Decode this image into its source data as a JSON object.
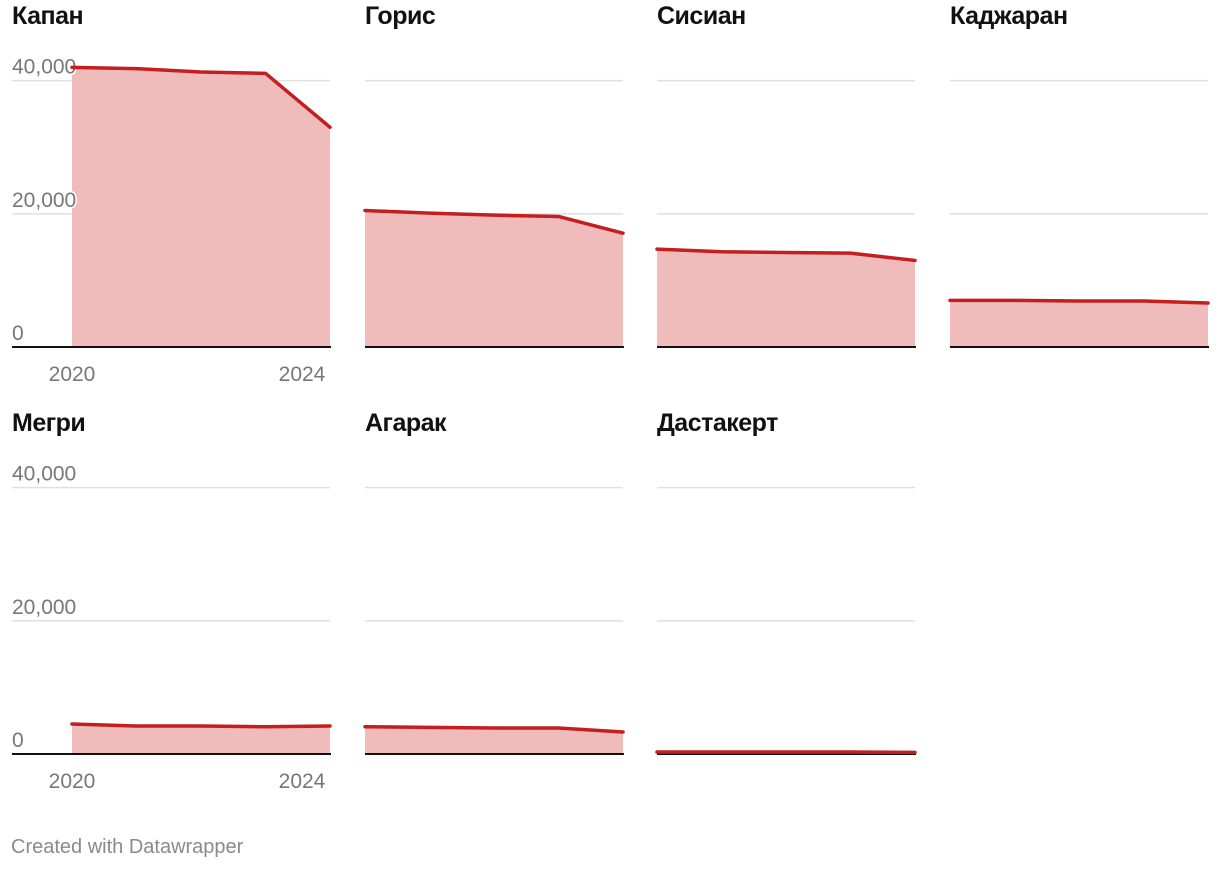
{
  "chart_data": {
    "type": "area",
    "layout": "small-multiples",
    "x": [
      2020,
      2021,
      2022,
      2023,
      2024
    ],
    "x_tick_labels": [
      "2020",
      "2024"
    ],
    "y_ticks": [
      0,
      20000,
      40000
    ],
    "y_tick_labels": [
      "0",
      "20,000",
      "40,000"
    ],
    "ylim": [
      0,
      42500
    ],
    "grid": true,
    "colors": {
      "line": "#c41e1e",
      "area": "#efbbbb",
      "grid": "#e0e0e0",
      "baseline": "#111111"
    },
    "panels": [
      {
        "title": "Капан",
        "values": [
          42000,
          41800,
          41300,
          41100,
          33000
        ]
      },
      {
        "title": "Горис",
        "values": [
          20500,
          20100,
          19800,
          19600,
          17100
        ]
      },
      {
        "title": "Сисиан",
        "values": [
          14700,
          14300,
          14200,
          14100,
          13000
        ]
      },
      {
        "title": "Каджаран",
        "values": [
          7000,
          7000,
          6900,
          6900,
          6600
        ]
      },
      {
        "title": "Мегри",
        "values": [
          4500,
          4200,
          4200,
          4100,
          4200
        ]
      },
      {
        "title": "Агарак",
        "values": [
          4100,
          4000,
          3900,
          3900,
          3300
        ]
      },
      {
        "title": "Дастакерт",
        "values": [
          300,
          300,
          300,
          300,
          250
        ]
      }
    ]
  },
  "footer": {
    "credit": "Created with Datawrapper"
  }
}
